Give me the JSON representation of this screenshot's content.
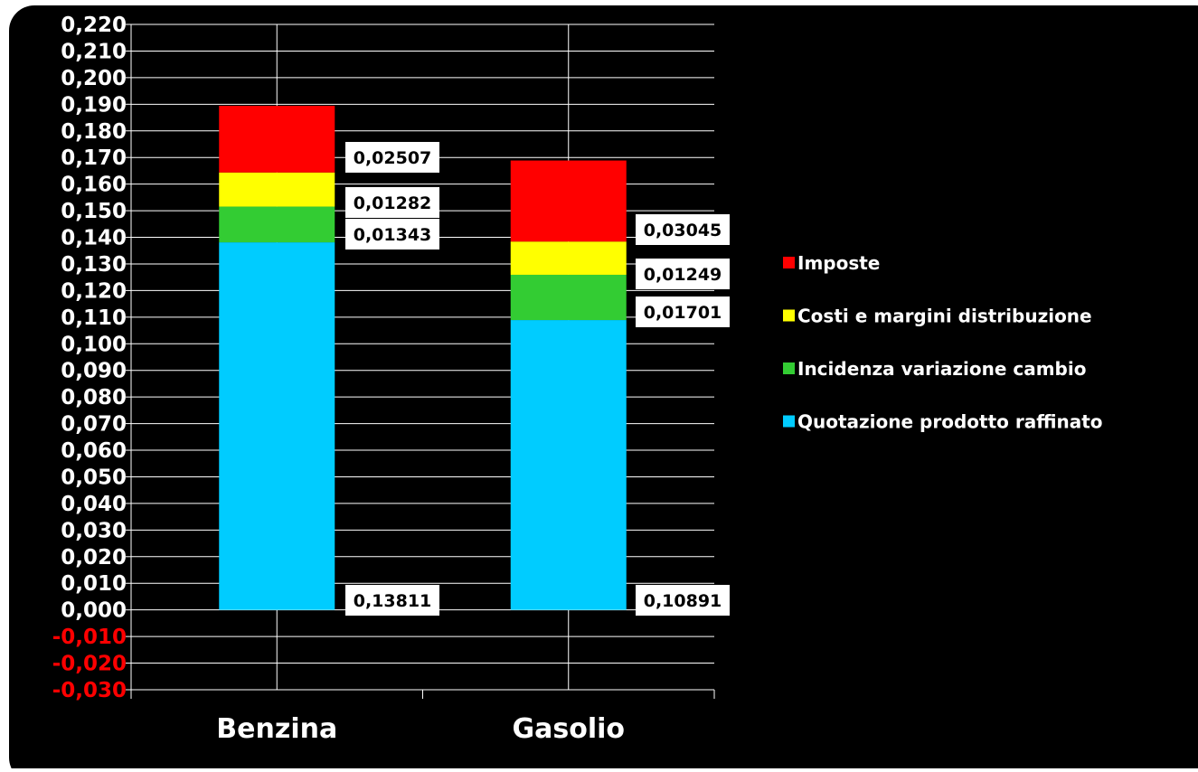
{
  "chart_data": {
    "type": "bar",
    "stacked": true,
    "categories": [
      "Benzina",
      "Gasolio"
    ],
    "series": [
      {
        "name": "Quotazione prodotto raffinato",
        "color": "#00CCFF",
        "values": [
          0.13811,
          0.10891
        ],
        "labels": [
          "0,13811",
          "0,10891"
        ]
      },
      {
        "name": "Incidenza variazione cambio",
        "color": "#33CC33",
        "values": [
          0.01343,
          0.01701
        ],
        "labels": [
          "0,01343",
          "0,01701"
        ]
      },
      {
        "name": "Costi e margini distribuzione",
        "color": "#FFFF00",
        "values": [
          0.01282,
          0.01249
        ],
        "labels": [
          "0,01282",
          "0,01249"
        ]
      },
      {
        "name": "Imposte",
        "color": "#FF0000",
        "values": [
          0.02507,
          0.03045
        ],
        "labels": [
          "0,02507",
          "0,03045"
        ]
      }
    ],
    "ylim": [
      -0.03,
      0.22
    ],
    "y_ticks": [
      {
        "value": 0.22,
        "label": "0,220"
      },
      {
        "value": 0.21,
        "label": "0,210"
      },
      {
        "value": 0.2,
        "label": "0,200"
      },
      {
        "value": 0.19,
        "label": "0,190"
      },
      {
        "value": 0.18,
        "label": "0,180"
      },
      {
        "value": 0.17,
        "label": "0,170"
      },
      {
        "value": 0.16,
        "label": "0,160"
      },
      {
        "value": 0.15,
        "label": "0,150"
      },
      {
        "value": 0.14,
        "label": "0,140"
      },
      {
        "value": 0.13,
        "label": "0,130"
      },
      {
        "value": 0.12,
        "label": "0,120"
      },
      {
        "value": 0.11,
        "label": "0,110"
      },
      {
        "value": 0.1,
        "label": "0,100"
      },
      {
        "value": 0.09,
        "label": "0,090"
      },
      {
        "value": 0.08,
        "label": "0,080"
      },
      {
        "value": 0.07,
        "label": "0,070"
      },
      {
        "value": 0.06,
        "label": "0,060"
      },
      {
        "value": 0.05,
        "label": "0,050"
      },
      {
        "value": 0.04,
        "label": "0,040"
      },
      {
        "value": 0.03,
        "label": "0,030"
      },
      {
        "value": 0.02,
        "label": "0,020"
      },
      {
        "value": 0.01,
        "label": "0,010"
      },
      {
        "value": 0.0,
        "label": "0,000"
      },
      {
        "value": -0.01,
        "label": "-0,010"
      },
      {
        "value": -0.02,
        "label": "-0,020"
      },
      {
        "value": -0.03,
        "label": "-0,030"
      }
    ],
    "legend_order": [
      "Imposte",
      "Costi e margini distribuzione",
      "Incidenza variazione cambio",
      "Quotazione prodotto raffinato"
    ],
    "legend_position": "right",
    "grid": true,
    "colors": {
      "background": "#000000",
      "gridline": "#ffffff",
      "tick_text": "#ffffff",
      "negative_tick_text": "#ff0000",
      "label_box": "#ffffff",
      "label_text": "#000000"
    }
  }
}
